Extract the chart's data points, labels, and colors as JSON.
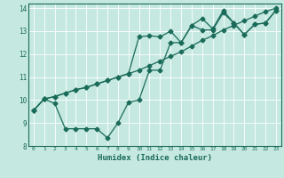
{
  "xlabel": "Humidex (Indice chaleur)",
  "bg_color": "#c5e8e0",
  "line_color": "#1a6b5a",
  "grid_color": "#ffffff",
  "xlim": [
    -0.5,
    23.5
  ],
  "ylim": [
    8,
    14.2
  ],
  "xticks": [
    0,
    1,
    2,
    3,
    4,
    5,
    6,
    7,
    8,
    9,
    10,
    11,
    12,
    13,
    14,
    15,
    16,
    17,
    18,
    19,
    20,
    21,
    22,
    23
  ],
  "yticks": [
    8,
    9,
    10,
    11,
    12,
    13,
    14
  ],
  "line1_x": [
    0,
    1,
    2,
    3,
    4,
    5,
    6,
    7,
    8,
    9,
    10,
    11,
    12,
    13,
    14,
    15,
    16,
    17,
    18,
    19,
    20,
    21,
    22,
    23
  ],
  "line1_y": [
    9.55,
    10.05,
    9.85,
    8.75,
    8.75,
    8.75,
    8.75,
    8.35,
    9.0,
    9.9,
    10.0,
    11.3,
    11.3,
    12.5,
    12.5,
    13.25,
    13.05,
    13.05,
    13.8,
    13.35,
    12.85,
    13.3,
    13.35,
    13.9
  ],
  "line2_x": [
    0,
    1,
    2,
    3,
    4,
    5,
    6,
    7,
    8,
    9,
    10,
    11,
    12,
    13,
    14,
    15,
    16,
    17,
    18,
    19,
    20,
    21,
    22,
    23
  ],
  "line2_y": [
    9.55,
    10.05,
    10.15,
    10.3,
    10.45,
    10.55,
    10.7,
    10.85,
    11.0,
    11.15,
    11.3,
    11.5,
    11.7,
    11.9,
    12.1,
    12.35,
    12.6,
    12.8,
    13.05,
    13.25,
    13.45,
    13.65,
    13.85,
    14.0
  ],
  "line3_x": [
    0,
    1,
    2,
    3,
    4,
    5,
    6,
    7,
    8,
    9,
    10,
    11,
    12,
    13,
    14,
    15,
    16,
    17,
    18,
    19,
    20,
    21,
    22,
    23
  ],
  "line3_y": [
    9.55,
    10.05,
    10.15,
    10.3,
    10.45,
    10.55,
    10.7,
    10.85,
    11.0,
    11.15,
    12.75,
    12.8,
    12.75,
    13.0,
    12.5,
    13.25,
    13.55,
    13.1,
    13.9,
    13.35,
    12.85,
    13.3,
    13.35,
    13.9
  ]
}
